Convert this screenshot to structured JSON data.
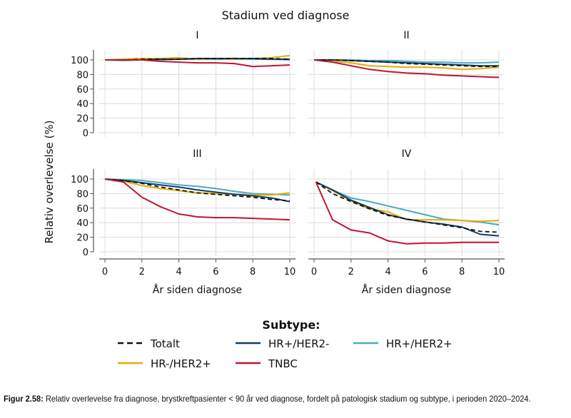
{
  "chart_data": {
    "type": "line",
    "title": "Stadium ved diagnose",
    "ylabel": "Relativ overlevelse (%)",
    "xlabel": "År siden diagnose",
    "xlim": [
      0,
      10
    ],
    "ylim": [
      0,
      100
    ],
    "xticks": [
      "0",
      "2",
      "4",
      "6",
      "8",
      "10"
    ],
    "yticks": [
      "0",
      "20",
      "40",
      "60",
      "80",
      "100"
    ],
    "grid": true,
    "x": [
      0,
      1,
      2,
      3,
      4,
      5,
      6,
      7,
      8,
      9,
      10
    ],
    "legend": {
      "title": "Subtype:",
      "placement": "bottom"
    },
    "series_meta": [
      {
        "name": "Totalt",
        "color": "#111111",
        "dashed": true
      },
      {
        "name": "HR+/HER2-",
        "color": "#0f3d66",
        "dashed": false
      },
      {
        "name": "HR+/HER2+",
        "color": "#4aaac8",
        "dashed": false
      },
      {
        "name": "HR-/HER2+",
        "color": "#e8ac00",
        "dashed": false
      },
      {
        "name": "TNBC",
        "color": "#c0152f",
        "dashed": false
      }
    ],
    "panels": [
      {
        "title": "I",
        "series": [
          [
            100,
            100,
            101,
            101,
            101,
            102,
            102,
            102,
            102,
            102,
            101
          ],
          [
            100,
            100,
            100,
            101,
            101,
            102,
            102,
            102,
            102,
            101,
            101
          ],
          [
            100,
            99,
            100,
            100,
            101,
            101,
            101,
            101,
            101,
            101,
            100
          ],
          [
            100,
            101,
            102,
            102,
            103,
            101,
            102,
            101,
            102,
            103,
            106
          ],
          [
            100,
            100,
            100,
            98,
            97,
            96,
            96,
            95,
            91,
            92,
            93
          ]
        ]
      },
      {
        "title": "II",
        "series": [
          [
            100,
            100,
            99,
            98,
            97,
            95,
            94,
            93,
            92,
            91,
            91
          ],
          [
            100,
            100,
            99,
            98,
            97,
            96,
            95,
            94,
            93,
            92,
            92
          ],
          [
            100,
            100,
            100,
            99,
            99,
            98,
            97,
            97,
            96,
            96,
            97
          ],
          [
            100,
            98,
            96,
            92,
            91,
            90,
            90,
            89,
            87,
            88,
            90
          ],
          [
            100,
            97,
            92,
            87,
            84,
            82,
            81,
            79,
            78,
            77,
            76
          ]
        ]
      },
      {
        "title": "III",
        "series": [
          [
            100,
            98,
            94,
            89,
            85,
            81,
            79,
            77,
            75,
            72,
            70
          ],
          [
            100,
            98,
            95,
            92,
            89,
            85,
            82,
            79,
            77,
            74,
            69
          ],
          [
            100,
            99,
            98,
            95,
            92,
            90,
            87,
            83,
            80,
            79,
            78
          ],
          [
            100,
            97,
            91,
            87,
            84,
            81,
            80,
            79,
            78,
            78,
            81
          ],
          [
            100,
            96,
            75,
            62,
            52,
            48,
            47,
            47,
            46,
            45,
            44
          ]
        ]
      },
      {
        "title": "IV",
        "series": [
          [
            96,
            80,
            69,
            59,
            50,
            45,
            41,
            37,
            33,
            28,
            27
          ],
          [
            96,
            85,
            71,
            61,
            51,
            45,
            41,
            38,
            34,
            24,
            22
          ],
          [
            96,
            85,
            74,
            69,
            63,
            57,
            51,
            45,
            43,
            41,
            37
          ],
          [
            96,
            84,
            70,
            59,
            55,
            44,
            44,
            44,
            43,
            42,
            43
          ],
          [
            96,
            44,
            30,
            26,
            15,
            11,
            12,
            12,
            13,
            13,
            13
          ]
        ]
      }
    ]
  },
  "caption": {
    "label": "Figur 2.58:",
    "text": "Relativ overlevelse fra diagnose, brystkreftpasienter < 90 år ved diagnose, fordelt på patologisk stadium og subtype, i perioden 2020–2024."
  }
}
